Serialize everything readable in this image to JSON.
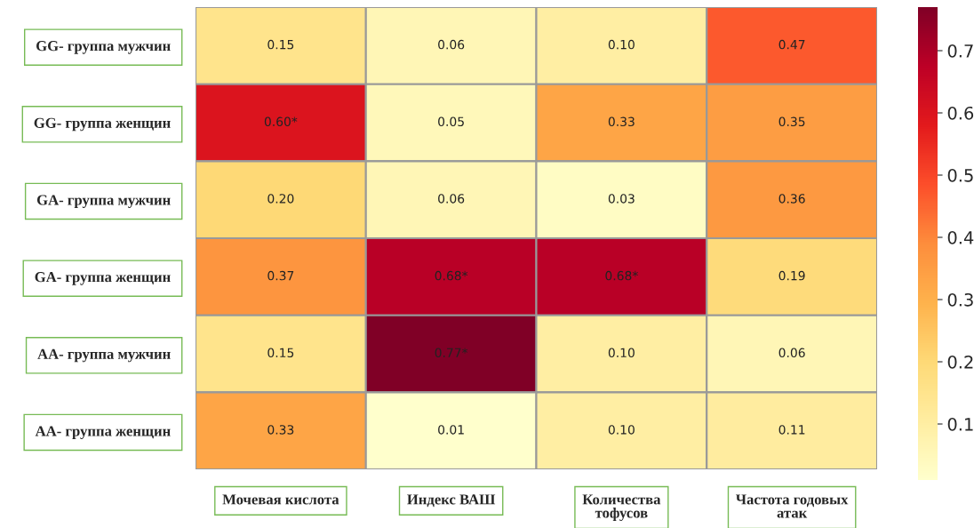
{
  "chart_data": {
    "type": "heatmap",
    "categories": [
      "Мочевая кислота",
      "Индекс ВАШ",
      "Количества\nтофусов",
      "Частота годовых\nатак"
    ],
    "y_categories": [
      "GG- группа мужчин",
      "GG- группа женщин",
      "GA- группа мужчин",
      "GA- группа женщин",
      "AA- группа мужчин",
      "AA- группа женщин"
    ],
    "cells": [
      [
        0.15,
        0.06,
        0.1,
        0.47
      ],
      [
        0.6,
        0.05,
        0.33,
        0.35
      ],
      [
        0.2,
        0.06,
        0.03,
        0.36
      ],
      [
        0.37,
        0.68,
        0.68,
        0.19
      ],
      [
        0.15,
        0.77,
        0.1,
        0.06
      ],
      [
        0.33,
        0.01,
        0.1,
        0.11
      ]
    ],
    "cell_labels": [
      [
        "0.15",
        "0.06",
        "0.10",
        "0.47"
      ],
      [
        "0.60*",
        "0.05",
        "0.33",
        "0.35"
      ],
      [
        "0.20",
        "0.06",
        "0.03",
        "0.36"
      ],
      [
        "0.37",
        "0.68*",
        "0.68*",
        "0.19"
      ],
      [
        "0.15",
        "0.77*",
        "0.10",
        "0.06"
      ],
      [
        "0.33",
        "0.01",
        "0.10",
        "0.11"
      ]
    ],
    "clim": [
      0.01,
      0.77
    ],
    "cticks": [
      0.1,
      0.2,
      0.3,
      0.4,
      0.5,
      0.6,
      0.7
    ]
  }
}
